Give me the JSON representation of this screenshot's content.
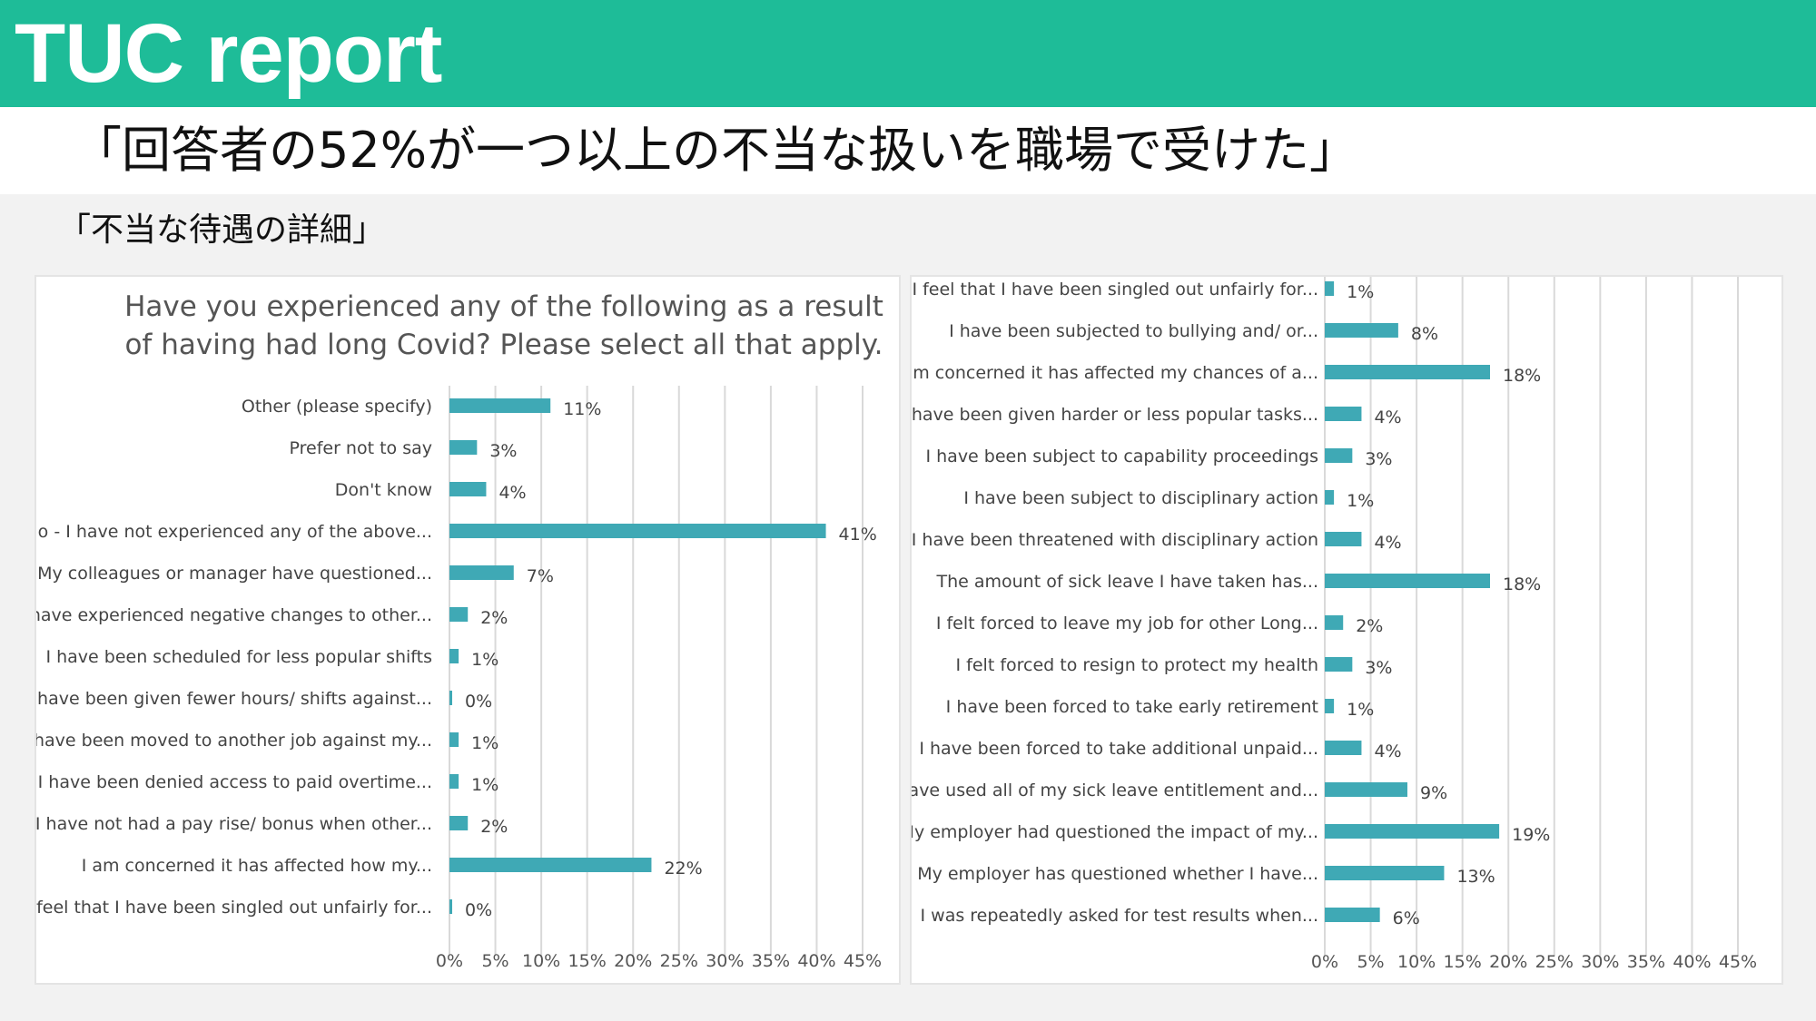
{
  "header": {
    "title": "TUC report",
    "headline": "「回答者の52%が一つ以上の不当な扱いを職場で受けた」",
    "subheadline": "「不当な待遇の詳細」"
  },
  "colors": {
    "header_bg": "#1ebc98",
    "bar": "#3fa9b5"
  },
  "chart_data": [
    {
      "type": "bar",
      "orientation": "horizontal",
      "title": "Have you experienced any of the following as a result of having had long Covid? Please select all that apply.",
      "title_lines": [
        "Have you experienced any of the following as a result",
        "of having had long Covid? Please select all that apply."
      ],
      "categories": [
        "Other (please specify)",
        "Prefer not to say",
        "Don't know",
        "No - I have not experienced any of the above...",
        "My colleagues or manager have questioned...",
        "I have experienced negative changes to other...",
        "I have been scheduled for less popular shifts",
        "I have been given fewer hours/ shifts against...",
        "I have been moved to another job against my...",
        "I have been denied access to paid overtime...",
        "I have not had a pay rise/ bonus when other...",
        "I am concerned it has affected how my...",
        "I feel that I have been singled out unfairly for..."
      ],
      "values": [
        11,
        3,
        4,
        41,
        7,
        2,
        1,
        0,
        1,
        1,
        2,
        22,
        0
      ],
      "value_labels": [
        "11%",
        "3%",
        "4%",
        "41%",
        "7%",
        "2%",
        "1%",
        "0%",
        "1%",
        "1%",
        "2%",
        "22%",
        "0%"
      ],
      "xlim": [
        0,
        45
      ],
      "x_ticks": [
        "0%",
        "5%",
        "10%",
        "15%",
        "20%",
        "25%",
        "30%",
        "35%",
        "40%",
        "45%"
      ],
      "grid": true,
      "xlabel": "",
      "ylabel": ""
    },
    {
      "type": "bar",
      "orientation": "horizontal",
      "title": "",
      "categories": [
        "I feel that I have been singled out unfairly for...",
        "I have been subjected to bullying and/ or...",
        "I am concerned it has affected my chances of a...",
        "I have been given harder or less popular tasks...",
        "I have been subject to capability proceedings",
        "I have been subject to disciplinary action",
        "I have been threatened with disciplinary action",
        "The amount of sick leave I have taken has...",
        "I felt forced to leave my job for other Long...",
        "I felt forced to resign to protect my health",
        "I have been forced to take early retirement",
        "I have been forced to take additional unpaid...",
        "I have used all of my sick leave entitlement and...",
        "My employer had questioned the impact of my...",
        "My employer has questioned whether I have...",
        "I was repeatedly asked for test results when..."
      ],
      "values": [
        1,
        8,
        18,
        4,
        3,
        1,
        4,
        18,
        2,
        3,
        1,
        4,
        9,
        19,
        13,
        6
      ],
      "value_labels": [
        "1%",
        "8%",
        "18%",
        "4%",
        "3%",
        "1%",
        "4%",
        "18%",
        "2%",
        "3%",
        "1%",
        "4%",
        "9%",
        "19%",
        "13%",
        "6%"
      ],
      "xlim": [
        0,
        45
      ],
      "x_ticks": [
        "0%",
        "5%",
        "10%",
        "15%",
        "20%",
        "25%",
        "30%",
        "35%",
        "40%",
        "45%"
      ],
      "grid": true,
      "xlabel": "",
      "ylabel": ""
    }
  ]
}
